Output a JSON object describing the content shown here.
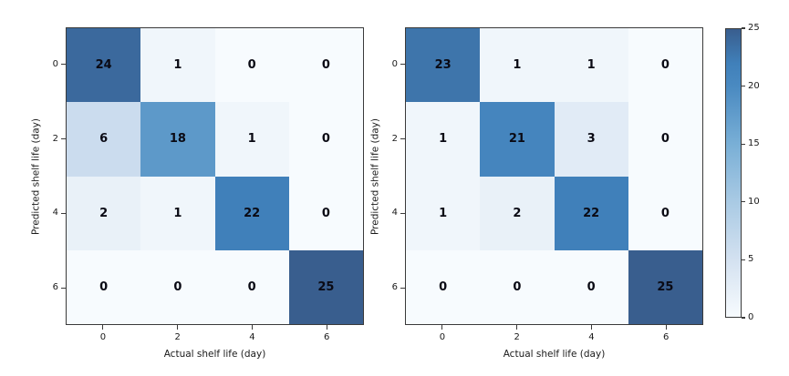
{
  "chart_data": [
    {
      "type": "heatmap",
      "name": "confusion-matrix-left",
      "xlabel": "Actual shelf life (day)",
      "ylabel": "Predicted shelf life (day)",
      "x_ticks": [
        "0",
        "2",
        "4",
        "6"
      ],
      "y_ticks": [
        "0",
        "2",
        "4",
        "6"
      ],
      "values": [
        [
          24,
          1,
          0,
          0
        ],
        [
          6,
          18,
          1,
          0
        ],
        [
          2,
          1,
          22,
          0
        ],
        [
          0,
          0,
          0,
          25
        ]
      ],
      "vmin": 0,
      "vmax": 25,
      "colormap": "Blues",
      "grid": false
    },
    {
      "type": "heatmap",
      "name": "confusion-matrix-right",
      "xlabel": "Actual shelf life (day)",
      "ylabel": "Predicted shelf life (day)",
      "x_ticks": [
        "0",
        "2",
        "4",
        "6"
      ],
      "y_ticks": [
        "0",
        "2",
        "4",
        "6"
      ],
      "values": [
        [
          23,
          1,
          1,
          0
        ],
        [
          1,
          21,
          3,
          0
        ],
        [
          1,
          2,
          22,
          0
        ],
        [
          0,
          0,
          0,
          25
        ]
      ],
      "vmin": 0,
      "vmax": 25,
      "colormap": "Blues",
      "grid": false
    }
  ],
  "colorbar": {
    "tick_labels": [
      "0",
      "5",
      "10",
      "15",
      "20",
      "25"
    ],
    "tick_values": [
      0,
      5,
      10,
      15,
      20,
      25
    ],
    "vmin": 0,
    "vmax": 25
  },
  "colors": {
    "cmap_stops": [
      [
        0,
        "#f7fbfe"
      ],
      [
        5,
        "#d3e1f0"
      ],
      [
        10,
        "#a9cae4"
      ],
      [
        15,
        "#79afd6"
      ],
      [
        20,
        "#4a8ac1"
      ],
      [
        22,
        "#4080ba"
      ],
      [
        25,
        "#395e8e"
      ]
    ],
    "spine": "#3a3a3a",
    "annotation_text": "#0a0a14",
    "tick_text": "#1a1a1a",
    "background": "#ffffff"
  }
}
